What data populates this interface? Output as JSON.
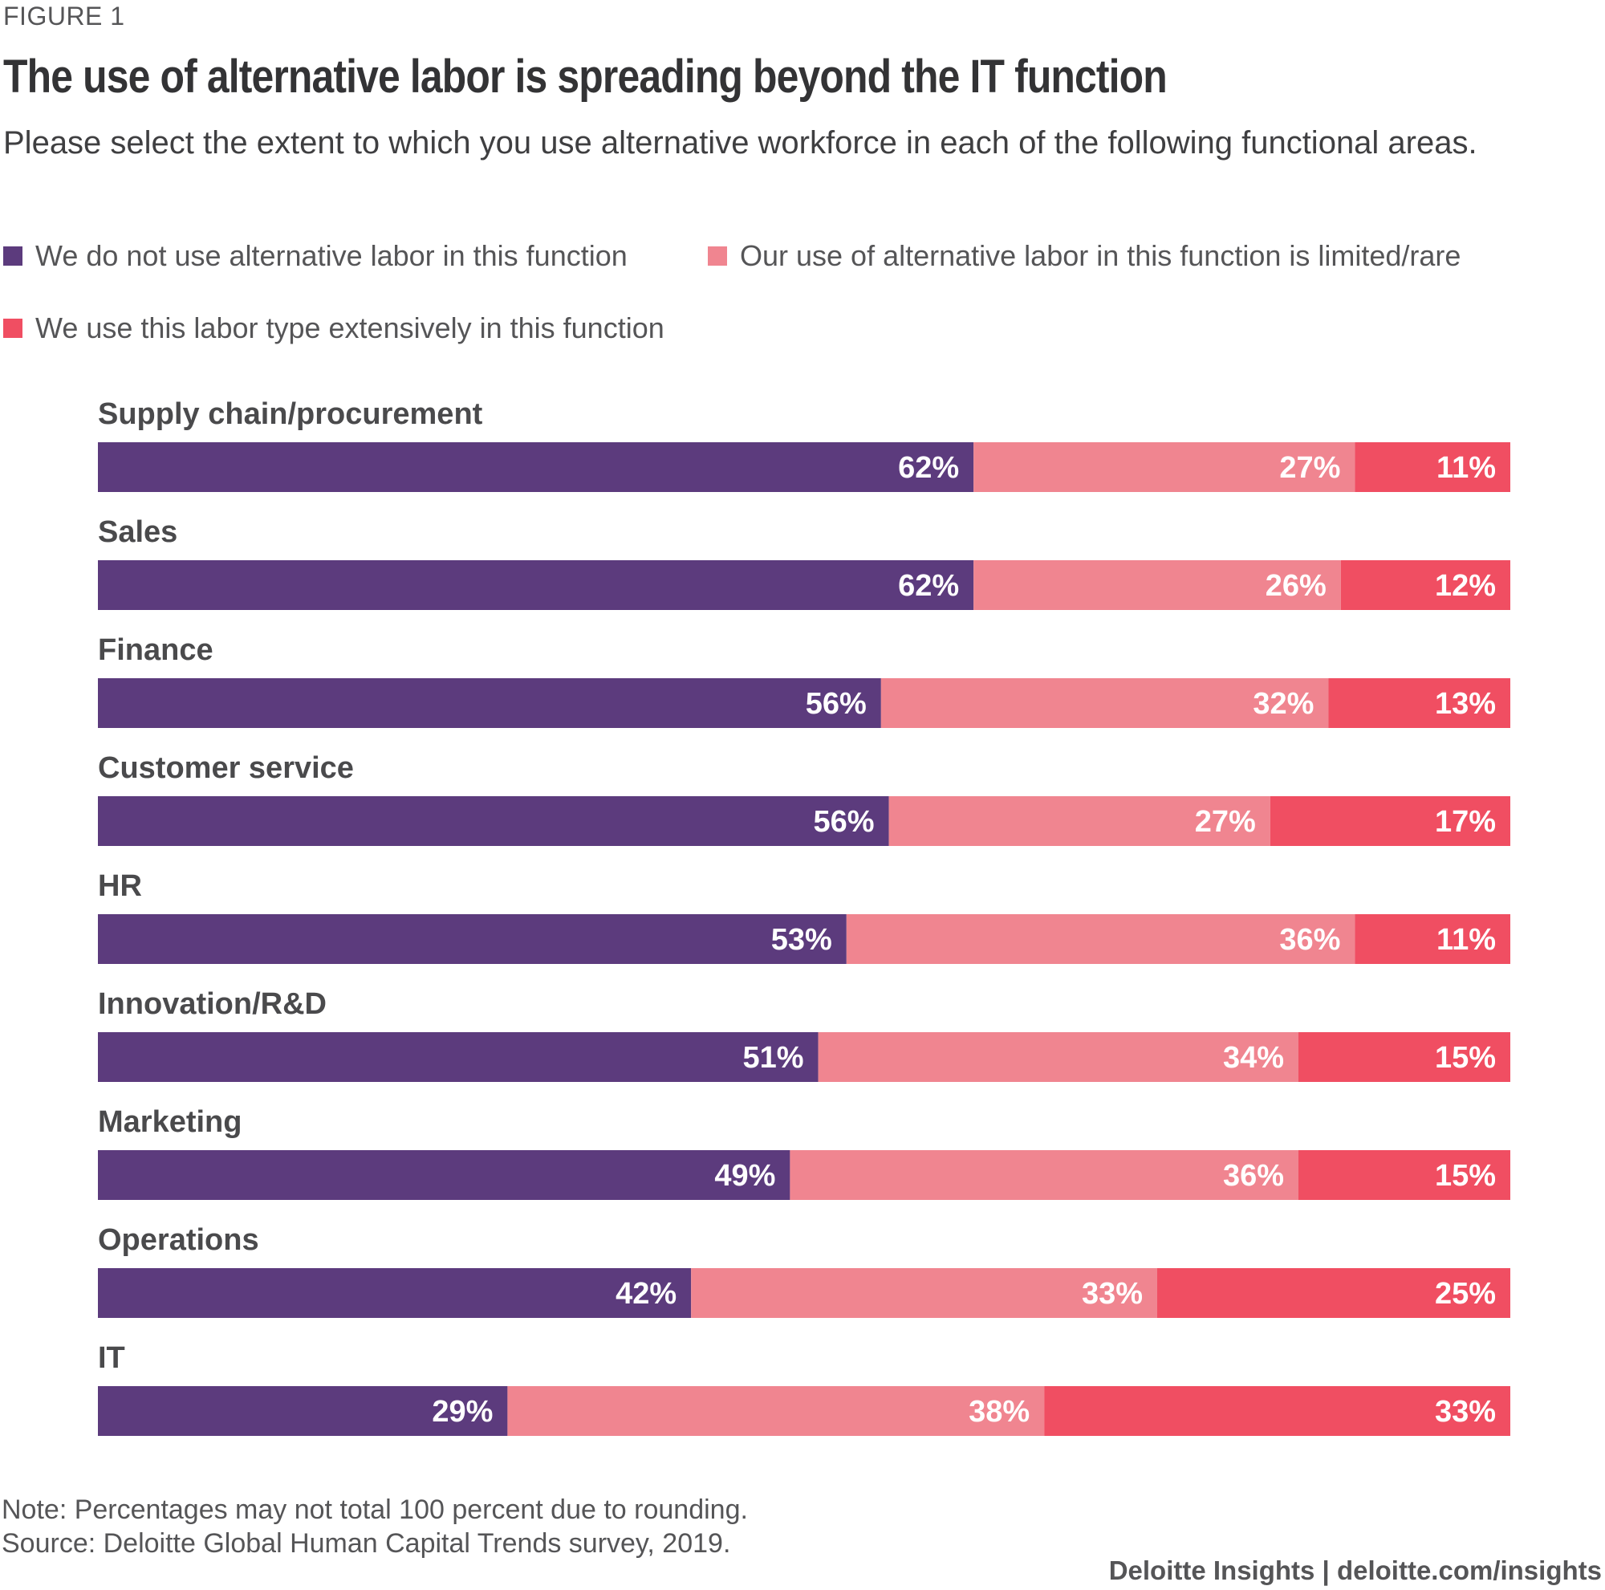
{
  "figure_label": "FIGURE 1",
  "note": "Note: Percentages may not total 100 percent due to rounding.",
  "source": "Source: Deloitte Global Human Capital Trends survey, 2019.",
  "credit": "Deloitte Insights | deloitte.com/insights",
  "colors": {
    "not_use": "#5c3b7d",
    "limited": "#f08590",
    "extensive": "#f04e62",
    "category_text": "#4a4a4c",
    "bar_label_text": "#ffffff"
  },
  "chart_data": {
    "type": "bar",
    "orientation": "horizontal",
    "stacked": true,
    "title": "The use of alternative labor is spreading beyond the IT function",
    "subtitle": "Please select the extent to which you use alternative workforce in each of the following functional areas.",
    "legend_position": "top-left",
    "grid": false,
    "xlim": [
      0,
      100
    ],
    "categories": [
      "Supply chain/procurement",
      "Sales",
      "Finance",
      "Customer service",
      "HR",
      "Innovation/R&D",
      "Marketing",
      "Operations",
      "IT"
    ],
    "series": [
      {
        "name": "We do not use alternative labor in this function",
        "color": "#5c3b7d",
        "values": [
          62,
          62,
          56,
          56,
          53,
          51,
          49,
          42,
          29
        ],
        "labels": [
          "62%",
          "62%",
          "56%",
          "56%",
          "53%",
          "51%",
          "49%",
          "42%",
          "29%"
        ]
      },
      {
        "name": "Our use of alternative labor in this function is limited/rare",
        "color": "#f08590",
        "values": [
          27,
          26,
          32,
          27,
          36,
          34,
          36,
          33,
          38
        ],
        "labels": [
          "27%",
          "26%",
          "32%",
          "27%",
          "36%",
          "34%",
          "36%",
          "33%",
          "38%"
        ]
      },
      {
        "name": "We use this labor type extensively in this function",
        "color": "#f04e62",
        "values": [
          11,
          12,
          13,
          17,
          11,
          15,
          15,
          25,
          33
        ],
        "labels": [
          "11%",
          "12%",
          "13%",
          "17%",
          "11%",
          "15%",
          "15%",
          "25%",
          "33%"
        ]
      }
    ]
  }
}
